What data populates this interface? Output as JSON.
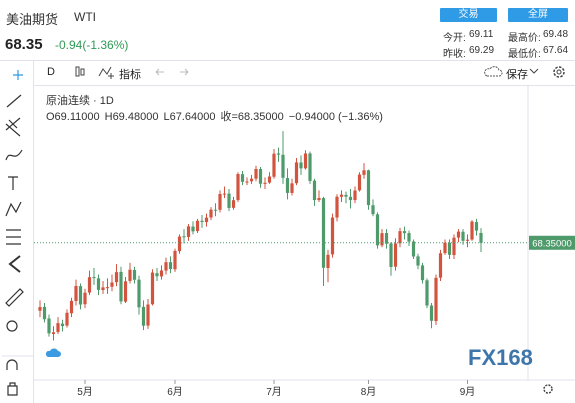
{
  "header": {
    "name": "美油期货",
    "symbol": "WTI",
    "price": "68.35",
    "change": "-0.94(-1.36%)",
    "buttons": [
      "交易",
      "全屏"
    ],
    "stats": [
      [
        "今开:",
        "69.11"
      ],
      [
        "最高价:",
        "69.48"
      ],
      [
        "昨收:",
        "69.29"
      ],
      [
        "最低价:",
        "67.64"
      ]
    ]
  },
  "toolbar": {
    "interval": "D",
    "indicators": "指标",
    "save": "保存"
  },
  "legend": {
    "title": "原油连续 · 1D",
    "values": [
      "O69.11000",
      "H69.48000",
      "L67.64000",
      "收=68.35000",
      "−0.94000 (−1.36%)"
    ]
  },
  "watermark": "FX168",
  "chart_data": {
    "type": "candlestick",
    "categories": [
      null,
      null,
      null,
      null,
      null,
      null,
      null,
      null,
      null,
      null,
      "5月",
      null,
      null,
      null,
      null,
      null,
      null,
      null,
      null,
      null,
      null,
      null,
      null,
      null,
      null,
      null,
      null,
      null,
      null,
      null,
      "6月",
      null,
      null,
      null,
      null,
      null,
      null,
      null,
      null,
      null,
      null,
      null,
      null,
      null,
      null,
      null,
      null,
      null,
      null,
      null,
      null,
      null,
      "7月",
      null,
      null,
      null,
      null,
      null,
      null,
      null,
      null,
      null,
      null,
      null,
      null,
      null,
      null,
      null,
      null,
      null,
      null,
      null,
      null,
      "8月",
      null,
      null,
      null,
      null,
      null,
      null,
      null,
      null,
      null,
      null,
      null,
      null,
      null,
      null,
      null,
      null,
      null,
      null,
      null,
      null,
      null,
      "9月",
      null,
      null,
      null
    ],
    "open": [
      63.1,
      63.4,
      62.5,
      61.3,
      61.45,
      62.1,
      61.95,
      62.9,
      63.85,
      65.0,
      63.6,
      64.5,
      65.7,
      65.6,
      64.7,
      64.9,
      64.95,
      65.3,
      66.1,
      63.8,
      65.4,
      66.25,
      65.5,
      63.4,
      61.95,
      63.6,
      66.0,
      65.75,
      66.2,
      66.85,
      66.3,
      67.7,
      68.85,
      68.8,
      69.6,
      69.25,
      70.05,
      69.95,
      70.3,
      70.9,
      70.9,
      72.1,
      72.15,
      71.05,
      71.65,
      73.65,
      73.05,
      73.1,
      73.3,
      74.05,
      72.9,
      73.0,
      73.45,
      75.25,
      75.15,
      73.35,
      72.2,
      72.95,
      74.55,
      74.1,
      75.25,
      73.15,
      71.65,
      71.8,
      66.4,
      67.45,
      70.3,
      71.9,
      72.05,
      71.9,
      71.65,
      72.4,
      73.6,
      73.95,
      71.25,
      70.55,
      68.15,
      69.1,
      68.3,
      66.5,
      68.3,
      69.25,
      69.1,
      68.45,
      67.3,
      66.6,
      65.45,
      63.5,
      62.3,
      65.65,
      67.55,
      68.35,
      67.4,
      68.75,
      69.2,
      68.5,
      68.6,
      69.95,
      69.11
    ],
    "high": [
      63.9,
      63.7,
      62.8,
      61.9,
      62.6,
      62.4,
      63.2,
      64.1,
      65.5,
      65.2,
      64.8,
      66.2,
      66.4,
      65.9,
      65.4,
      65.6,
      65.9,
      66.7,
      66.5,
      65.7,
      66.8,
      66.5,
      65.8,
      63.9,
      64.0,
      66.3,
      66.4,
      66.6,
      67.2,
      67.3,
      67.9,
      69.0,
      69.4,
      69.8,
      70.0,
      70.2,
      70.5,
      70.6,
      71.1,
      71.4,
      72.4,
      72.7,
      72.5,
      71.9,
      73.8,
      73.9,
      73.4,
      73.6,
      74.3,
      74.2,
      73.4,
      73.8,
      75.6,
      75.7,
      76.98,
      74.1,
      73.3,
      74.9,
      75.1,
      75.5,
      75.4,
      73.3,
      72.4,
      71.9,
      67.8,
      70.6,
      72.1,
      72.4,
      72.3,
      72.5,
      72.7,
      73.8,
      74.5,
      74.0,
      71.7,
      70.7,
      69.4,
      69.4,
      68.4,
      68.7,
      69.5,
      69.6,
      69.3,
      68.6,
      67.5,
      66.8,
      65.6,
      63.7,
      65.9,
      67.8,
      68.6,
      68.6,
      69.0,
      69.4,
      69.4,
      69.0,
      70.1,
      70.2,
      69.48
    ],
    "low": [
      62.6,
      62.2,
      61.1,
      60.8,
      61.3,
      61.5,
      61.8,
      62.6,
      63.5,
      63.2,
      63.3,
      64.3,
      65.1,
      64.3,
      64.4,
      64.4,
      64.6,
      65.0,
      63.6,
      63.7,
      65.2,
      65.2,
      62.8,
      61.6,
      61.7,
      63.5,
      65.4,
      65.5,
      65.9,
      66.0,
      66.1,
      67.5,
      68.3,
      68.5,
      69.0,
      69.1,
      69.5,
      69.6,
      70.1,
      70.4,
      70.7,
      71.8,
      70.8,
      70.9,
      71.5,
      72.8,
      72.8,
      72.9,
      73.1,
      72.6,
      72.5,
      72.9,
      73.3,
      74.6,
      72.9,
      71.7,
      72.0,
      72.8,
      73.6,
      74.0,
      72.9,
      71.2,
      71.5,
      65.01,
      65.3,
      67.2,
      70.0,
      71.5,
      71.4,
      71.0,
      71.4,
      72.3,
      73.3,
      70.9,
      70.4,
      67.9,
      68.0,
      67.9,
      65.8,
      66.2,
      68.0,
      68.6,
      68.1,
      67.1,
      66.3,
      65.2,
      63.3,
      61.74,
      62.0,
      65.4,
      67.4,
      67.1,
      67.1,
      68.4,
      68.2,
      68.0,
      68.5,
      68.9,
      67.64
    ],
    "close": [
      63.38,
      62.44,
      61.35,
      61.43,
      62.14,
      61.91,
      62.94,
      63.86,
      65.01,
      63.58,
      64.49,
      65.69,
      65.63,
      64.71,
      64.9,
      64.92,
      65.28,
      66.08,
      63.82,
      65.37,
      66.27,
      65.49,
      63.36,
      61.94,
      63.58,
      66.05,
      65.76,
      66.21,
      66.85,
      66.32,
      67.72,
      68.83,
      68.81,
      69.62,
      69.23,
      70.05,
      69.96,
      70.29,
      70.91,
      70.88,
      72.12,
      72.15,
      71.04,
      71.64,
      73.66,
      73.06,
      73.08,
      73.3,
      74.05,
      72.91,
      72.98,
      73.47,
      75.23,
      75.16,
      73.37,
      72.2,
      72.94,
      74.56,
      74.1,
      75.25,
      73.13,
      71.65,
      71.81,
      66.42,
      67.42,
      70.3,
      71.91,
      72.07,
      71.91,
      71.65,
      72.39,
      73.62,
      73.95,
      71.26,
      70.56,
      68.15,
      69.09,
      68.28,
      66.48,
      68.29,
      69.25,
      69.09,
      68.44,
      67.29,
      66.59,
      65.46,
      63.5,
      62.32,
      65.64,
      67.54,
      68.36,
      67.42,
      68.74,
      69.21,
      68.5,
      68.59,
      69.99,
      69.29,
      68.35
    ],
    "up_color": "#d2543f",
    "down_color": "#4e9a6b",
    "ylim": [
      57.9,
      80.0
    ],
    "last_price": {
      "value": 68.35,
      "label": "68.35000"
    }
  }
}
